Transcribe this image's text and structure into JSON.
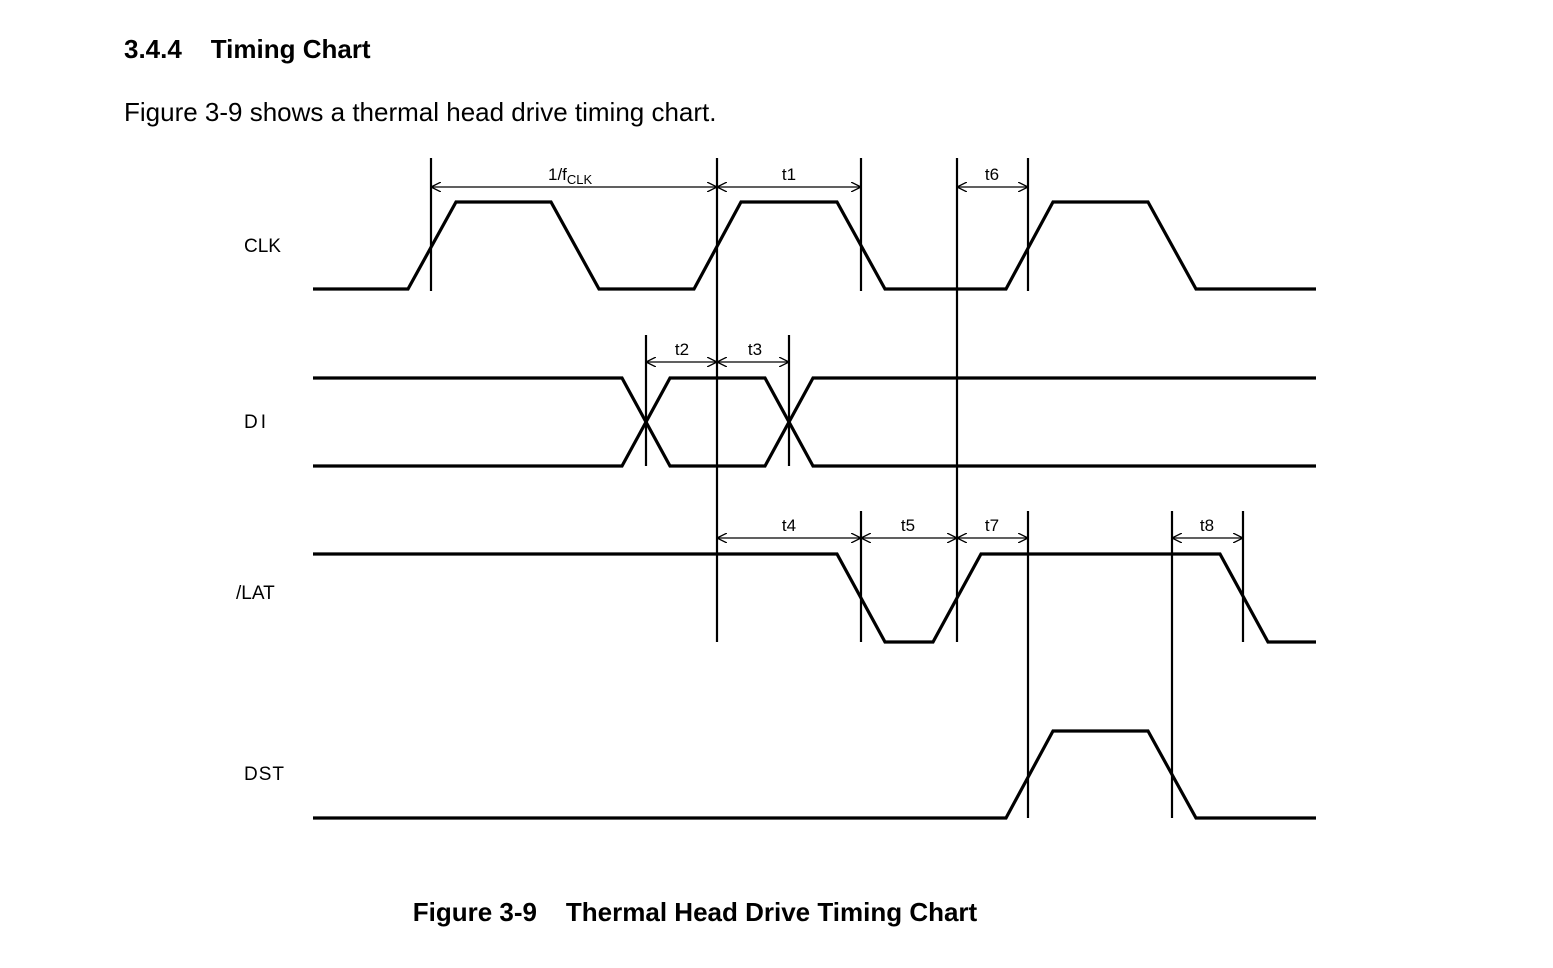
{
  "section": {
    "number": "3.4.4",
    "title": "Timing Chart"
  },
  "intro": "Figure 3-9 shows a thermal head drive timing chart.",
  "caption": {
    "number": "Figure 3-9",
    "title": "Thermal Head Drive Timing Chart"
  },
  "signals": [
    {
      "id": "clk",
      "label": "CLK"
    },
    {
      "id": "di",
      "label": "DI"
    },
    {
      "id": "lat",
      "label": "/LAT"
    },
    {
      "id": "dst",
      "label": "DST"
    }
  ],
  "timing_labels": {
    "period_prefix": "1/f",
    "period_subscript": "CLK",
    "t1": "t1",
    "t2": "t2",
    "t3": "t3",
    "t4": "t4",
    "t5": "t5",
    "t6": "t6",
    "t7": "t7",
    "t8": "t8"
  }
}
